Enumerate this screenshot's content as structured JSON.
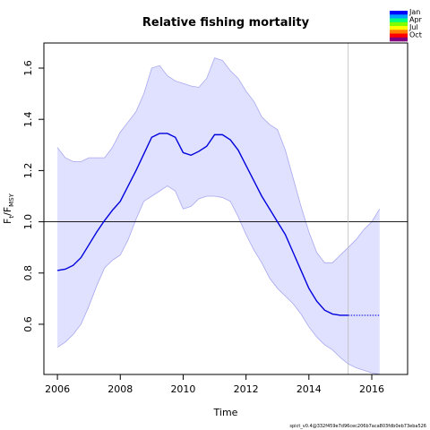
{
  "chart_data": {
    "type": "line",
    "title": "Relative fishing mortality",
    "xlabel": "Time",
    "ylabel_parts": [
      "F",
      "t",
      "/F",
      "MSY"
    ],
    "footer": "spict_v0.4@332f459e7d96cec206b7aca803fdb0eb73eba526",
    "xlim": [
      2005.57,
      2017.14
    ],
    "ylim": [
      0.404,
      1.698
    ],
    "xticks": [
      2006,
      2008,
      2010,
      2012,
      2014,
      2016
    ],
    "yticks": [
      0.6,
      0.8,
      {
        "value": 1,
        "label": "1.0"
      },
      1.2,
      1.4,
      1.6
    ],
    "hlines": [
      1
    ],
    "vlines": [
      2015.25
    ],
    "estimate": {
      "color": "#0000dd",
      "x": [
        2006,
        2006.25,
        2006.5,
        2006.75,
        2007,
        2007.25,
        2007.5,
        2007.75,
        2008,
        2008.25,
        2008.5,
        2008.75,
        2009,
        2009.25,
        2009.5,
        2009.75,
        2010,
        2010.25,
        2010.5,
        2010.75,
        2011,
        2011.25,
        2011.5,
        2011.75,
        2012,
        2012.25,
        2012.5,
        2012.75,
        2013,
        2013.25,
        2013.5,
        2013.75,
        2014,
        2014.25,
        2014.5,
        2014.75,
        2015,
        2015.25
      ],
      "values": [
        0.81,
        0.815,
        0.83,
        0.86,
        0.91,
        0.96,
        1.005,
        1.045,
        1.08,
        1.14,
        1.2,
        1.265,
        1.33,
        1.345,
        1.345,
        1.33,
        1.27,
        1.26,
        1.275,
        1.295,
        1.34,
        1.34,
        1.32,
        1.28,
        1.22,
        1.16,
        1.1,
        1.05,
        1.0,
        0.95,
        0.88,
        0.81,
        0.74,
        0.69,
        0.655,
        0.64,
        0.635,
        0.635
      ]
    },
    "forecast": {
      "color": "#0000dd",
      "x": [
        2015.25,
        2016.25
      ],
      "values": [
        0.635,
        0.635
      ]
    },
    "ci": {
      "color": "#e0e0ff",
      "line_color": "#a8a8f0",
      "x": [
        2006,
        2006.25,
        2006.5,
        2006.75,
        2007,
        2007.25,
        2007.5,
        2007.75,
        2008,
        2008.25,
        2008.5,
        2008.75,
        2009,
        2009.25,
        2009.5,
        2009.75,
        2010,
        2010.25,
        2010.5,
        2010.75,
        2011,
        2011.25,
        2011.5,
        2011.75,
        2012,
        2012.25,
        2012.5,
        2012.75,
        2013,
        2013.25,
        2013.5,
        2013.75,
        2014,
        2014.25,
        2014.5,
        2014.75,
        2015,
        2015.25,
        2015.5,
        2015.75,
        2016,
        2016.25
      ],
      "upper": [
        1.29,
        1.25,
        1.235,
        1.235,
        1.25,
        1.25,
        1.25,
        1.29,
        1.35,
        1.39,
        1.43,
        1.5,
        1.6,
        1.61,
        1.57,
        1.55,
        1.54,
        1.53,
        1.525,
        1.56,
        1.64,
        1.63,
        1.59,
        1.56,
        1.51,
        1.47,
        1.41,
        1.38,
        1.36,
        1.28,
        1.17,
        1.06,
        0.96,
        0.88,
        0.84,
        0.84,
        0.87,
        0.9,
        0.93,
        0.97,
        1.0,
        1.05
      ],
      "lower": [
        0.51,
        0.53,
        0.56,
        0.6,
        0.67,
        0.75,
        0.82,
        0.85,
        0.87,
        0.93,
        1.01,
        1.08,
        1.1,
        1.12,
        1.14,
        1.12,
        1.05,
        1.06,
        1.09,
        1.1,
        1.1,
        1.095,
        1.08,
        1.02,
        0.95,
        0.89,
        0.84,
        0.78,
        0.74,
        0.71,
        0.68,
        0.64,
        0.59,
        0.55,
        0.52,
        0.5,
        0.47,
        0.445,
        0.43,
        0.42,
        0.41,
        0.405
      ]
    },
    "season_legend": {
      "labels": [
        "Jan",
        "Apr",
        "Jul",
        "Oct"
      ],
      "colors": [
        "#0000ff",
        "#00a0ff",
        "#00ff80",
        "#80ff00",
        "#ffff00",
        "#ff8000",
        "#ff0000",
        "#800080"
      ]
    }
  }
}
